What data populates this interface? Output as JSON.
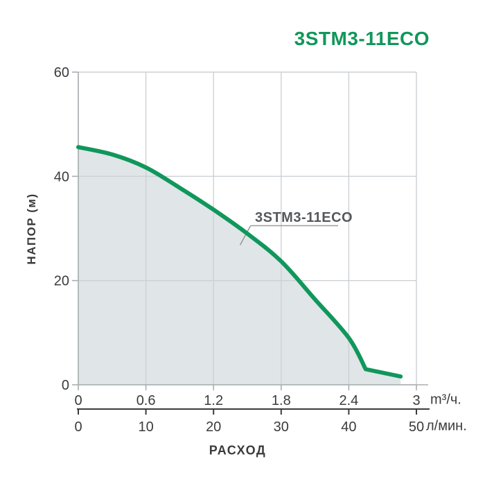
{
  "title": "3STM3-11ECO",
  "colors": {
    "accent_green": "#10975B",
    "area_fill": "#e0e5e8",
    "grid_line": "#ccd1d4",
    "axis_line": "#a9aeb1",
    "text_dark": "#3a3b3d",
    "annotation_text": "#56585b",
    "leader_line": "#989b9e",
    "secondary_axis": "#3a3b3d"
  },
  "chart_data": {
    "type": "area",
    "title": "3STM3-11ECO",
    "grid": true,
    "legend_position": "annotation-on-curve",
    "xlabel": "РАСХОД",
    "ylabel": "НАПОР (м)",
    "x_axis_primary": {
      "unit": "m³/ч.",
      "range": [
        0,
        3
      ],
      "ticks": [
        0,
        0.6,
        1.2,
        1.8,
        2.4,
        3
      ],
      "tick_labels": [
        "0",
        "0.6",
        "1.2",
        "1.8",
        "2.4",
        "3"
      ]
    },
    "x_axis_secondary": {
      "unit": "л/мин.",
      "range": [
        0,
        50
      ],
      "ticks": [
        0,
        10,
        20,
        30,
        40,
        50
      ],
      "tick_labels": [
        "0",
        "10",
        "20",
        "30",
        "40",
        "50"
      ]
    },
    "y_axis": {
      "range": [
        0,
        60
      ],
      "ticks": [
        0,
        20,
        40,
        60
      ],
      "tick_labels": [
        "0",
        "20",
        "40",
        "60"
      ]
    },
    "series": [
      {
        "name": "3STM3-11ECO",
        "x_m3h": [
          0,
          0.3,
          0.6,
          0.9,
          1.2,
          1.5,
          1.8,
          2.1,
          2.4,
          2.55,
          2.86
        ],
        "y_m": [
          45.6,
          44.2,
          41.7,
          37.8,
          33.6,
          29.0,
          23.7,
          16.4,
          9.0,
          3.0,
          1.6
        ],
        "smooth_until_index": 9
      }
    ],
    "annotation": {
      "label": "3STM3-11ECO"
    }
  }
}
